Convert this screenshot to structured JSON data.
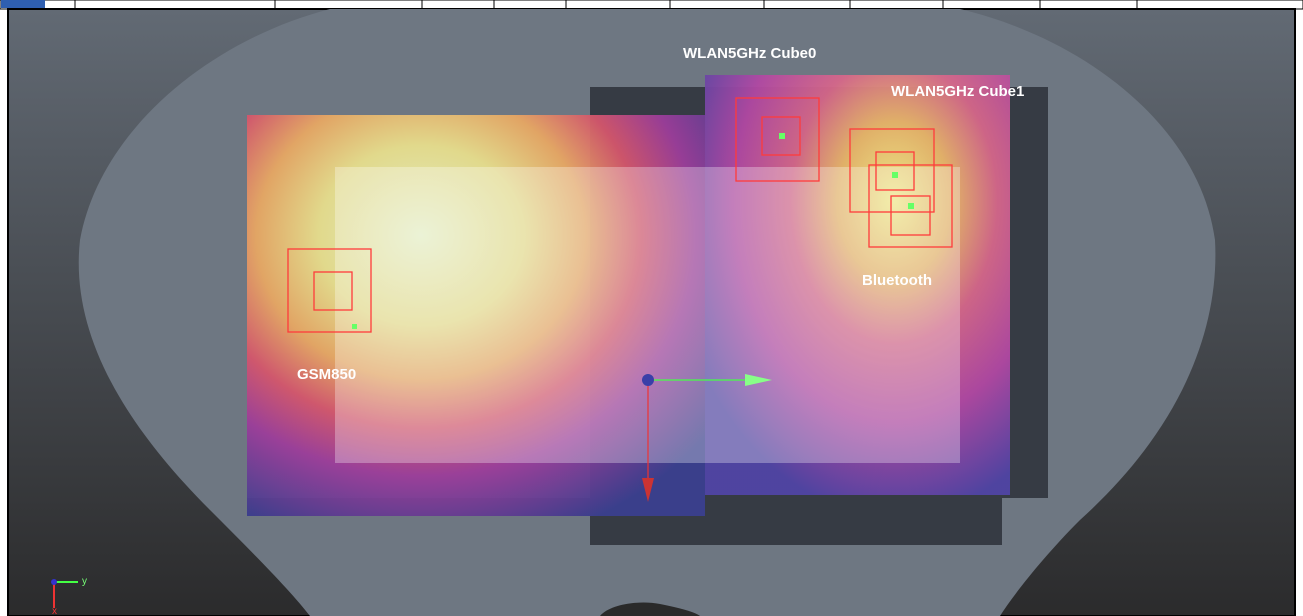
{
  "labels": {
    "wlan_cube0": "WLAN5GHz Cube0",
    "wlan_cube1": "WLAN5GHz Cube1",
    "bluetooth": "Bluetooth",
    "gsm850": "GSM850"
  },
  "axis_triad": {
    "y": "y",
    "x": "x"
  }
}
